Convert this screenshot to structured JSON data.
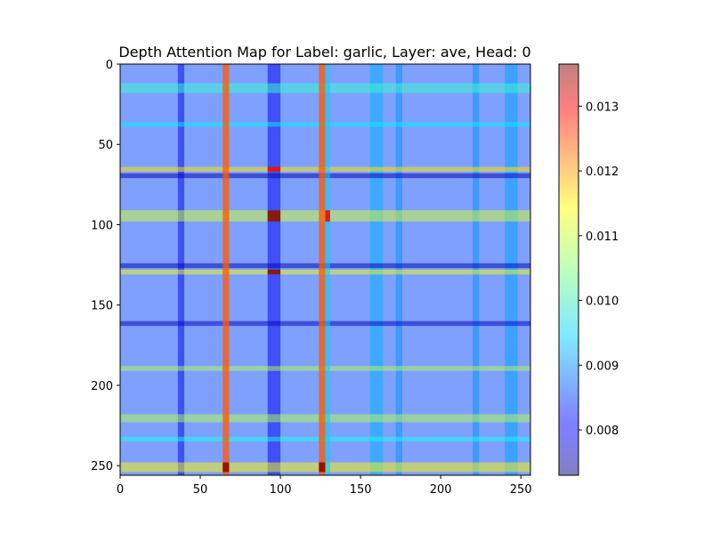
{
  "chart_data": {
    "type": "heatmap",
    "title": "Depth Attention Map for Label: garlic, Layer: ave, Head: 0",
    "xlabel": "",
    "ylabel": "",
    "x_range": [
      0,
      256
    ],
    "y_range": [
      0,
      256
    ],
    "y_inverted": true,
    "xticks": [
      0,
      50,
      100,
      150,
      200,
      250
    ],
    "yticks": [
      0,
      50,
      100,
      150,
      200,
      250
    ],
    "colorbar": {
      "colormap": "jet",
      "alpha": 0.5,
      "range": [
        0.0073,
        0.01365
      ],
      "ticks": [
        "0.008",
        "0.009",
        "0.010",
        "0.011",
        "0.012",
        "0.013"
      ],
      "tick_values": [
        0.008,
        0.009,
        0.01,
        0.011,
        0.012,
        0.013
      ],
      "placement": "right"
    },
    "base_value": 0.0085,
    "bright_columns": [
      {
        "x": [
          64,
          68
        ],
        "value": 0.0123
      },
      {
        "x": [
          124,
          128
        ],
        "value": 0.0123
      }
    ],
    "cyan_columns": [
      {
        "x": [
          128,
          131
        ],
        "value": 0.0094
      }
    ],
    "row_bands": [
      {
        "y": [
          12,
          18
        ],
        "value": 0.01
      },
      {
        "y": [
          36,
          39
        ],
        "value": 0.0096
      },
      {
        "y": [
          64,
          67
        ],
        "value": 0.0114
      },
      {
        "y": [
          68,
          71
        ],
        "value": 0.0076
      },
      {
        "y": [
          91,
          98
        ],
        "value": 0.011
      },
      {
        "y": [
          124,
          127
        ],
        "value": 0.0076
      },
      {
        "y": [
          128,
          131
        ],
        "value": 0.0112
      },
      {
        "y": [
          160,
          163
        ],
        "value": 0.0077
      },
      {
        "y": [
          188,
          191
        ],
        "value": 0.0108
      },
      {
        "y": [
          218,
          223
        ],
        "value": 0.0108
      },
      {
        "y": [
          232,
          235
        ],
        "value": 0.0098
      },
      {
        "y": [
          248,
          254
        ],
        "value": 0.0113
      }
    ],
    "column_bands": [
      {
        "x": [
          36,
          40
        ],
        "value": 0.008
      },
      {
        "x": [
          92,
          100
        ],
        "value": 0.008
      },
      {
        "x": [
          156,
          164
        ],
        "value": 0.0092
      },
      {
        "x": [
          172,
          176
        ],
        "value": 0.009
      },
      {
        "x": [
          220,
          224
        ],
        "value": 0.009
      },
      {
        "x": [
          240,
          248
        ],
        "value": 0.0091
      }
    ],
    "hot_spots": [
      {
        "x": [
          92,
          100
        ],
        "y": [
          64,
          67
        ],
        "value": 0.013
      },
      {
        "x": [
          92,
          100
        ],
        "y": [
          91,
          98
        ],
        "value": 0.0136
      },
      {
        "x": [
          92,
          100
        ],
        "y": [
          128,
          131
        ],
        "value": 0.0136
      },
      {
        "x": [
          64,
          68
        ],
        "y": [
          248,
          254
        ],
        "value": 0.0136
      },
      {
        "x": [
          124,
          128
        ],
        "y": [
          248,
          254
        ],
        "value": 0.0136
      },
      {
        "x": [
          128,
          131
        ],
        "y": [
          91,
          98
        ],
        "value": 0.013
      }
    ]
  }
}
